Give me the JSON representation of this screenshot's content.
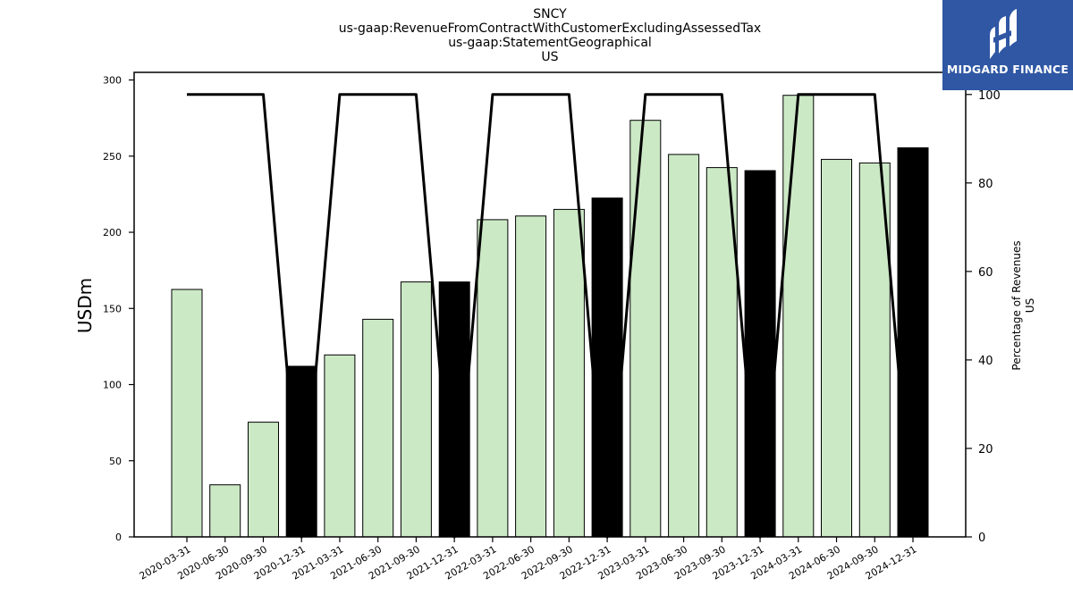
{
  "chart_data": {
    "type": "bar",
    "title_lines": [
      "SNCY",
      "us-gaap:RevenueFromContractWithCustomerExcludingAssessedTax",
      "us-gaap:StatementGeographical",
      "US"
    ],
    "ylabel": "USDm",
    "ylabel_right_lines": [
      "Percentage of Revenues",
      "US"
    ],
    "categories": [
      "2020-03-31",
      "2020-06-30",
      "2020-09-30",
      "2020-12-31",
      "2021-03-31",
      "2021-06-30",
      "2021-09-30",
      "2021-12-31",
      "2022-03-31",
      "2022-06-30",
      "2022-09-30",
      "2022-12-31",
      "2023-03-31",
      "2023-06-30",
      "2023-09-30",
      "2023-12-31",
      "2024-03-31",
      "2024-06-30",
      "2024-09-30",
      "2024-12-31"
    ],
    "values": [
      162.5,
      34.2,
      75.3,
      112.0,
      119.5,
      142.9,
      167.4,
      167.4,
      208.3,
      210.7,
      215.0,
      222.5,
      273.5,
      251.1,
      242.5,
      240.5,
      289.9,
      247.9,
      245.5,
      255.5
    ],
    "annual_flags": [
      false,
      false,
      false,
      true,
      false,
      false,
      false,
      true,
      false,
      false,
      false,
      true,
      false,
      false,
      false,
      true,
      false,
      false,
      false,
      true
    ],
    "bar_color_quarter": "#cce9c6",
    "bar_color_annual": "#000000",
    "line_color": "#000000",
    "ylim": [
      0,
      305
    ],
    "yticks": [
      0,
      50,
      100,
      150,
      200,
      250,
      300
    ],
    "pct_values": [
      100,
      100,
      100,
      0,
      100,
      100,
      100,
      0,
      100,
      100,
      100,
      0,
      100,
      100,
      100,
      0,
      100,
      100,
      100,
      0
    ],
    "y2lim": [
      0,
      105
    ],
    "y2ticks": [
      0,
      20,
      40,
      60,
      80,
      100
    ],
    "grid": false
  },
  "logo": {
    "text": "MIDGARD FINANCE",
    "background": "#2f57a4"
  }
}
